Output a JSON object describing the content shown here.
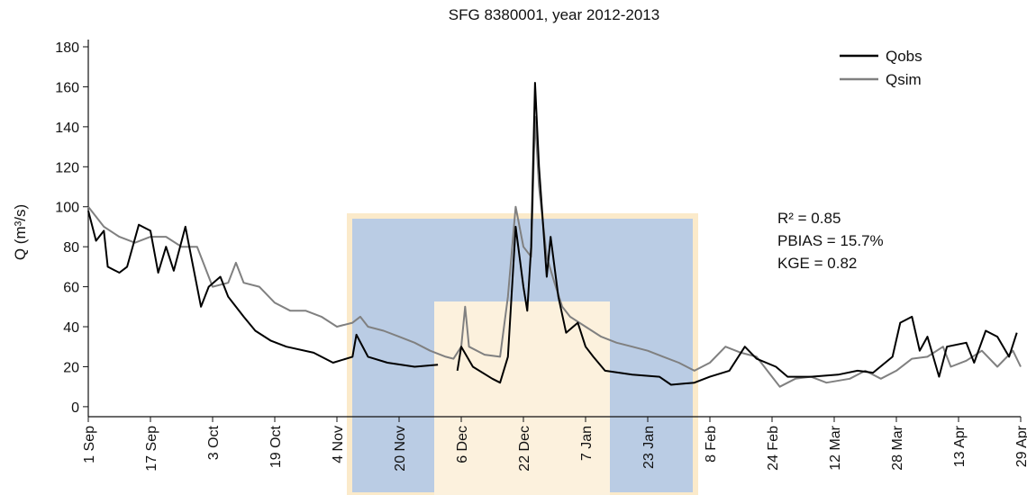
{
  "chart_data": {
    "type": "line",
    "title": "SFG 8380001, year 2012-2013",
    "y_label": "Q (m³/s)",
    "xlim": [
      0,
      240
    ],
    "ylim": [
      -5,
      180
    ],
    "yticks": [
      0,
      20,
      40,
      60,
      80,
      100,
      120,
      140,
      160,
      180
    ],
    "xticks": [
      {
        "value": 0,
        "label": "1 Sep"
      },
      {
        "value": 16,
        "label": "17 Sep"
      },
      {
        "value": 32,
        "label": "3 Oct"
      },
      {
        "value": 48,
        "label": "19 Oct"
      },
      {
        "value": 64,
        "label": "4 Nov"
      },
      {
        "value": 80,
        "label": "20 Nov"
      },
      {
        "value": 96,
        "label": "6 Dec"
      },
      {
        "value": 112,
        "label": "22 Dec"
      },
      {
        "value": 128,
        "label": "7 Jan"
      },
      {
        "value": 144,
        "label": "23 Jan"
      },
      {
        "value": 160,
        "label": "8 Feb"
      },
      {
        "value": 176,
        "label": "24 Feb"
      },
      {
        "value": 192,
        "label": "12 Mar"
      },
      {
        "value": 208,
        "label": "28 Mar"
      },
      {
        "value": 224,
        "label": "13 Apr"
      },
      {
        "value": 240,
        "label": "29 Apr"
      }
    ],
    "legend": "upper right",
    "annotations": [
      "R² = 0.85",
      "PBIAS = 15.7%",
      "KGE = 0.82"
    ],
    "series": [
      {
        "name": "Qobs",
        "color": "#000000",
        "x": [
          0,
          2,
          4,
          5,
          8,
          10,
          13,
          16,
          18,
          20,
          22,
          25,
          26,
          29,
          31,
          34,
          36,
          40,
          43,
          47,
          51,
          58,
          63,
          68,
          69,
          72,
          77,
          84,
          90,
          92,
          95,
          96,
          99,
          104,
          106,
          108,
          110,
          112,
          113,
          114,
          115,
          116,
          118,
          119,
          121,
          123,
          126,
          128,
          130,
          133,
          140,
          147,
          150,
          156,
          160,
          165,
          169,
          172,
          177,
          180,
          186,
          193,
          198,
          202,
          207,
          209,
          212,
          214,
          216,
          219,
          221,
          226,
          228,
          231,
          234,
          237,
          239
        ],
        "values": [
          98,
          83,
          88,
          70,
          67,
          70,
          91,
          88,
          67,
          80,
          68,
          90,
          80,
          50,
          60,
          65,
          55,
          45,
          38,
          33,
          30,
          27,
          22,
          25,
          36,
          25,
          22,
          20,
          21,
          null,
          18,
          30,
          20,
          14,
          12,
          25,
          90,
          60,
          48,
          80,
          162,
          120,
          65,
          85,
          55,
          37,
          42,
          30,
          25,
          18,
          16,
          15,
          11,
          12,
          15,
          18,
          30,
          24,
          20,
          15,
          15,
          16,
          18,
          17,
          25,
          42,
          45,
          28,
          35,
          15,
          30,
          32,
          22,
          38,
          35,
          25,
          37
        ]
      },
      {
        "name": "Qsim",
        "color": "#808080",
        "x": [
          0,
          4,
          8,
          12,
          16,
          20,
          24,
          28,
          32,
          36,
          38,
          40,
          44,
          48,
          52,
          56,
          60,
          64,
          68,
          70,
          72,
          76,
          80,
          84,
          88,
          92,
          94,
          96,
          97,
          98,
          102,
          106,
          108,
          110,
          112,
          114,
          115,
          116,
          118,
          120,
          122,
          124,
          128,
          132,
          136,
          140,
          144,
          148,
          152,
          156,
          160,
          164,
          168,
          172,
          176,
          178,
          182,
          186,
          190,
          196,
          200,
          204,
          208,
          212,
          216,
          220,
          222,
          226,
          230,
          234,
          238,
          240
        ],
        "values": [
          100,
          90,
          85,
          82,
          85,
          85,
          80,
          80,
          60,
          62,
          72,
          62,
          60,
          52,
          48,
          48,
          45,
          40,
          42,
          45,
          40,
          38,
          35,
          32,
          28,
          25,
          24,
          30,
          50,
          30,
          26,
          25,
          55,
          100,
          80,
          75,
          145,
          110,
          75,
          62,
          50,
          45,
          40,
          35,
          32,
          30,
          28,
          25,
          22,
          18,
          22,
          30,
          27,
          25,
          15,
          10,
          14,
          15,
          12,
          14,
          18,
          14,
          18,
          24,
          25,
          30,
          20,
          23,
          28,
          20,
          28,
          20
        ]
      }
    ]
  }
}
